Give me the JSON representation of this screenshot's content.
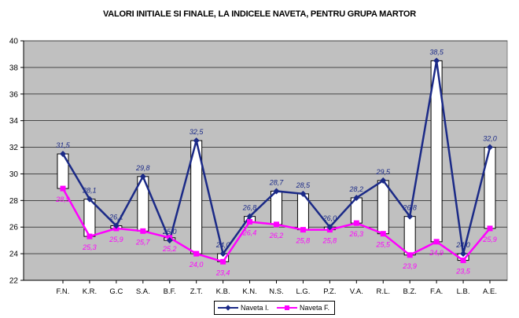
{
  "chart_data": {
    "type": "line",
    "title": "VALORI INITIALE SI FINALE, LA INDICELE NAVETA, PENTRU  GRUPA MARTOR",
    "xlabel": "",
    "ylabel": "",
    "categories": [
      "F.N.",
      "K.R.",
      "G.C",
      "S.A.",
      "B.F.",
      "Z.T.",
      "K.B.",
      "K.N.",
      "N.S.",
      "L.G.",
      "P.Z.",
      "V.A.",
      "R.L.",
      "B.Z.",
      "F.A.",
      "L.B.",
      "A.E."
    ],
    "ylim": [
      22,
      40
    ],
    "yticks": [
      22,
      24,
      26,
      28,
      30,
      32,
      34,
      36,
      38,
      40
    ],
    "grid": true,
    "legend_position": "bottom",
    "series": [
      {
        "name": "Naveta I.",
        "color": "#1b2a87",
        "marker": "diamond",
        "values": [
          31.5,
          28.1,
          26.1,
          29.8,
          25.0,
          32.5,
          24.0,
          26.8,
          28.7,
          28.5,
          26.0,
          28.2,
          29.5,
          26.8,
          38.5,
          24.0,
          32.0
        ],
        "labels": [
          "31,5",
          "28,1",
          "26,1",
          "29,8",
          "25,0",
          "32,5",
          "24,0",
          "26,8",
          "28,7",
          "28,5",
          "26,0",
          "28,2",
          "29,5",
          "26,8",
          "38,5",
          "24,0",
          "32,0"
        ]
      },
      {
        "name": "Naveta F.",
        "color": "#ff00ff",
        "marker": "square",
        "values": [
          28.9,
          25.3,
          25.9,
          25.7,
          25.2,
          24.0,
          23.4,
          26.4,
          26.2,
          25.8,
          25.8,
          26.3,
          25.5,
          23.9,
          24.9,
          23.5,
          25.9
        ],
        "labels": [
          "28,9",
          "25,3",
          "25,9",
          "25,7",
          "25,2",
          "24,0",
          "23,4",
          "26,4",
          "26,2",
          "25,8",
          "25,8",
          "26,3",
          "25,5",
          "23,9",
          "24,9",
          "23,5",
          "25,9"
        ]
      }
    ]
  }
}
